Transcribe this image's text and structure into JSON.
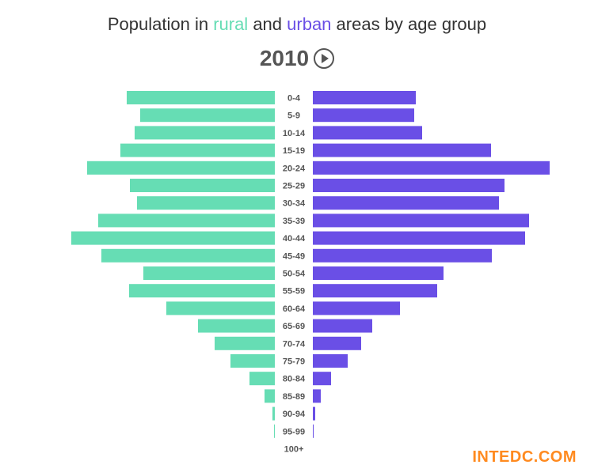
{
  "title": {
    "prefix": "Population in ",
    "rural": "rural",
    "middle": " and ",
    "urban": "urban",
    "suffix": " areas by age group"
  },
  "year": "2010",
  "play_icon": "play-circle-icon",
  "watermark": "INTEDC.COM",
  "colors": {
    "rural": "#66ddb4",
    "urban": "#6a4fe6",
    "text": "#555555"
  },
  "chart_data": {
    "type": "bar",
    "orientation": "horizontal-pyramid",
    "categories": [
      "0-4",
      "5-9",
      "10-14",
      "15-19",
      "20-24",
      "25-29",
      "30-34",
      "35-39",
      "40-44",
      "45-49",
      "50-54",
      "55-59",
      "60-64",
      "65-69",
      "70-74",
      "75-79",
      "80-84",
      "85-89",
      "90-94",
      "95-99",
      "100+"
    ],
    "series": [
      {
        "name": "rural",
        "side": "left",
        "values": [
          187,
          170,
          177,
          195,
          237,
          183,
          174,
          223,
          257,
          219,
          166,
          184,
          137,
          97,
          76,
          56,
          32,
          13,
          3,
          1,
          0
        ]
      },
      {
        "name": "urban",
        "side": "right",
        "values": [
          130,
          128,
          138,
          225,
          299,
          242,
          235,
          273,
          268,
          226,
          165,
          157,
          110,
          75,
          61,
          44,
          23,
          10,
          3,
          1,
          0
        ]
      }
    ],
    "xlim": [
      0,
      300
    ],
    "grid": false,
    "legend": "in-title"
  }
}
